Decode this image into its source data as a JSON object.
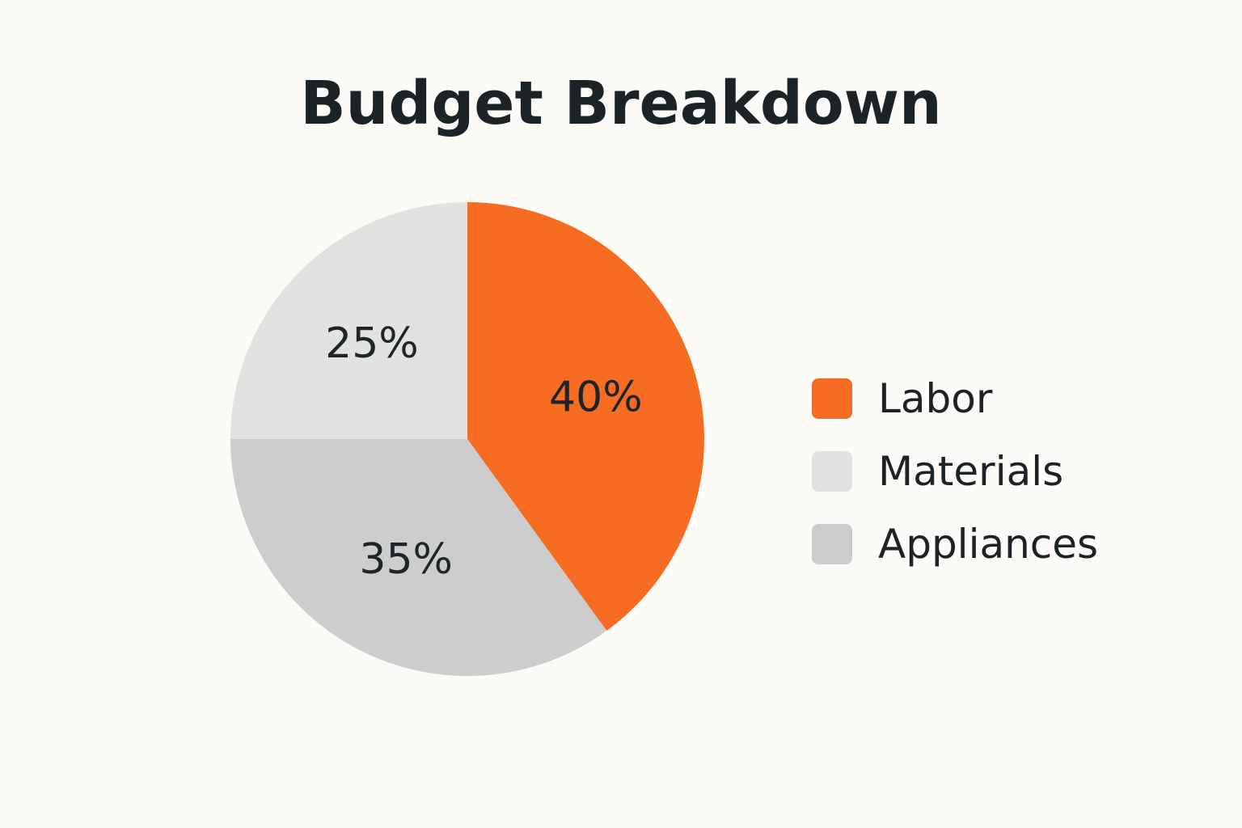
{
  "chart_data": {
    "type": "pie",
    "title": "Budget Breakdown",
    "slices": [
      {
        "label": "Labor",
        "value": 40,
        "value_label": "40%",
        "color": "#f56c22"
      },
      {
        "label": "Appliances",
        "value": 35,
        "value_label": "35%",
        "color": "#cdcdcd"
      },
      {
        "label": "Materials",
        "value": 25,
        "value_label": "25%",
        "color": "#e2e2e1"
      }
    ],
    "legend": {
      "placement": "right",
      "items": [
        {
          "label": "Labor",
          "color": "#f56c22"
        },
        {
          "label": "Materials",
          "color": "#e2e2e1"
        },
        {
          "label": "Appliances",
          "color": "#cdcdcd"
        }
      ]
    },
    "start_angle": "12 o'clock",
    "direction": "clockwise"
  }
}
